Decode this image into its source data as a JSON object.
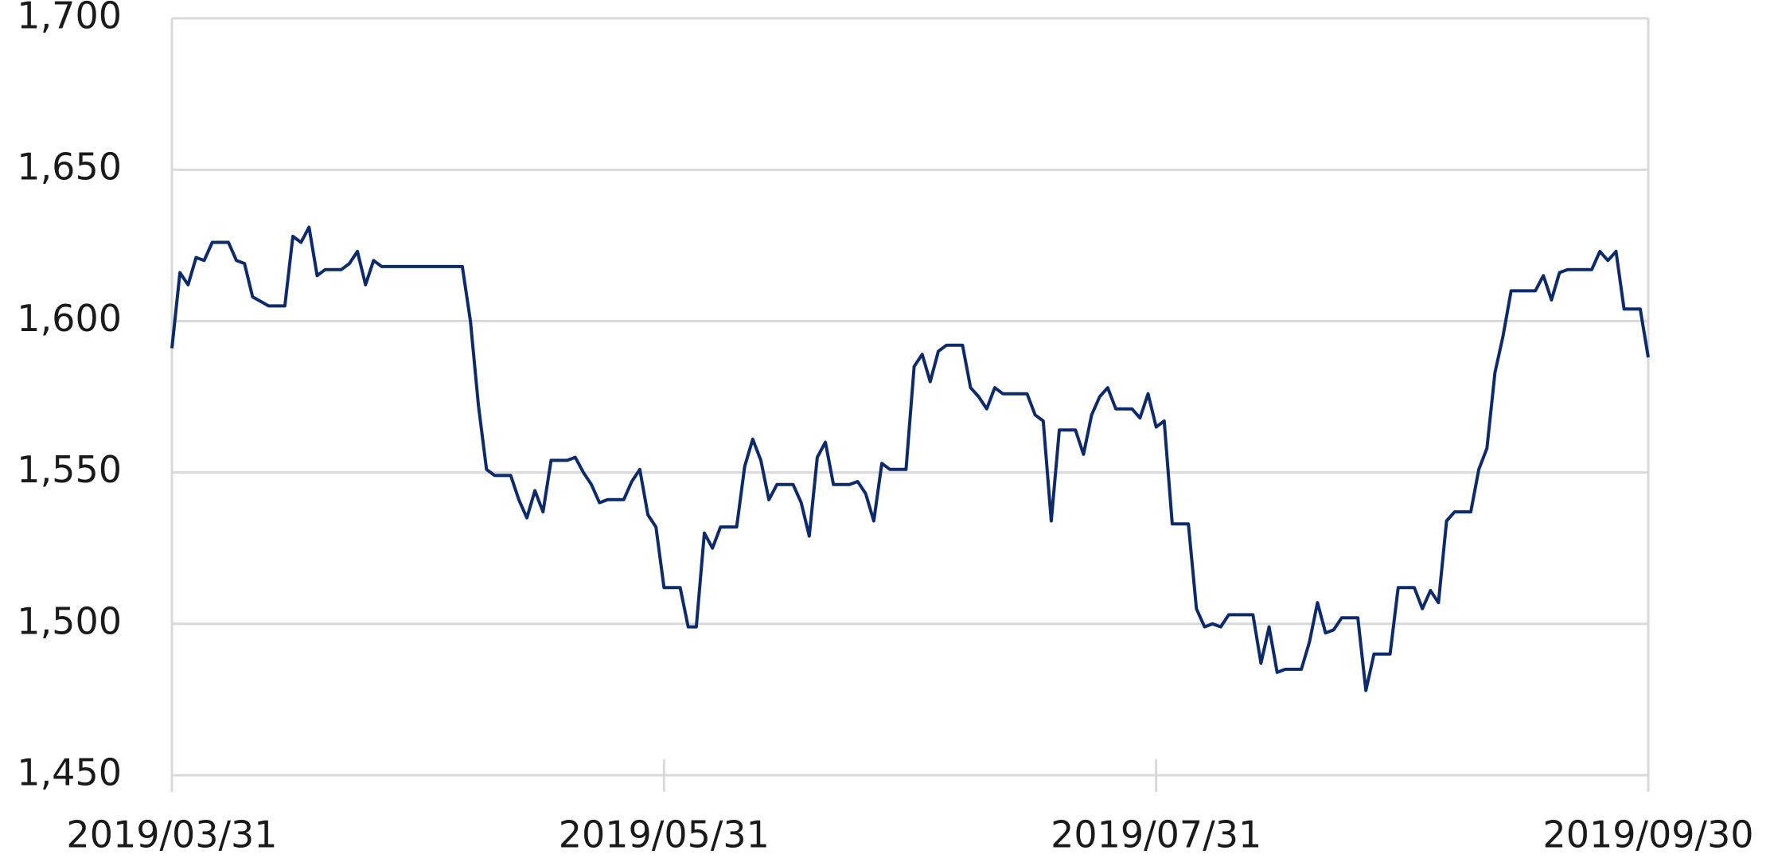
{
  "chart_data": {
    "type": "line",
    "x": [
      "2019/03/31",
      "2019/04/01",
      "2019/04/02",
      "2019/04/03",
      "2019/04/04",
      "2019/04/05",
      "2019/04/07",
      "2019/04/08",
      "2019/04/09",
      "2019/04/10",
      "2019/04/12",
      "2019/04/14",
      "2019/04/15",
      "2019/04/16",
      "2019/04/17",
      "2019/04/18",
      "2019/04/19",
      "2019/04/21",
      "2019/04/22",
      "2019/04/23",
      "2019/04/24",
      "2019/04/25",
      "2019/04/26",
      "2019/05/06",
      "2019/05/07",
      "2019/05/08",
      "2019/05/09",
      "2019/05/10",
      "2019/05/12",
      "2019/05/13",
      "2019/05/14",
      "2019/05/15",
      "2019/05/16",
      "2019/05/17",
      "2019/05/19",
      "2019/05/20",
      "2019/05/21",
      "2019/05/22",
      "2019/05/23",
      "2019/05/24",
      "2019/05/26",
      "2019/05/27",
      "2019/05/28",
      "2019/05/29",
      "2019/05/30",
      "2019/05/31",
      "2019/06/02",
      "2019/06/03",
      "2019/06/04",
      "2019/06/05",
      "2019/06/06",
      "2019/06/07",
      "2019/06/09",
      "2019/06/10",
      "2019/06/11",
      "2019/06/12",
      "2019/06/13",
      "2019/06/14",
      "2019/06/16",
      "2019/06/17",
      "2019/06/18",
      "2019/06/19",
      "2019/06/20",
      "2019/06/21",
      "2019/06/23",
      "2019/06/24",
      "2019/06/25",
      "2019/06/26",
      "2019/06/27",
      "2019/06/28",
      "2019/06/30",
      "2019/07/01",
      "2019/07/02",
      "2019/07/03",
      "2019/07/04",
      "2019/07/05",
      "2019/07/07",
      "2019/07/08",
      "2019/07/09",
      "2019/07/10",
      "2019/07/11",
      "2019/07/12",
      "2019/07/15",
      "2019/07/16",
      "2019/07/17",
      "2019/07/18",
      "2019/07/19",
      "2019/07/21",
      "2019/07/22",
      "2019/07/23",
      "2019/07/24",
      "2019/07/25",
      "2019/07/26",
      "2019/07/28",
      "2019/07/29",
      "2019/07/30",
      "2019/07/31",
      "2019/08/01",
      "2019/08/02",
      "2019/08/04",
      "2019/08/05",
      "2019/08/06",
      "2019/08/07",
      "2019/08/08",
      "2019/08/09",
      "2019/08/12",
      "2019/08/13",
      "2019/08/14",
      "2019/08/15",
      "2019/08/16",
      "2019/08/18",
      "2019/08/19",
      "2019/08/20",
      "2019/08/21",
      "2019/08/22",
      "2019/08/23",
      "2019/08/25",
      "2019/08/26",
      "2019/08/27",
      "2019/08/28",
      "2019/08/29",
      "2019/08/30",
      "2019/09/01",
      "2019/09/02",
      "2019/09/03",
      "2019/09/04",
      "2019/09/05",
      "2019/09/06",
      "2019/09/08",
      "2019/09/09",
      "2019/09/10",
      "2019/09/11",
      "2019/09/12",
      "2019/09/13",
      "2019/09/16",
      "2019/09/17",
      "2019/09/18",
      "2019/09/19",
      "2019/09/20",
      "2019/09/23",
      "2019/09/24",
      "2019/09/25",
      "2019/09/26",
      "2019/09/27",
      "2019/09/29",
      "2019/09/30"
    ],
    "series": [
      {
        "color": "#0d2a6b",
        "values": [
          1591,
          1616,
          1612,
          1621,
          1620,
          1626,
          1626,
          1620,
          1619,
          1608,
          1605,
          1605,
          1628,
          1626,
          1631,
          1615,
          1617,
          1617,
          1619,
          1623,
          1612,
          1620,
          1618,
          1618,
          1600,
          1572,
          1551,
          1549,
          1549,
          1541,
          1535,
          1544,
          1537,
          1554,
          1554,
          1555,
          1550,
          1546,
          1540,
          1541,
          1541,
          1547,
          1551,
          1536,
          1532,
          1512,
          1512,
          1499,
          1499,
          1530,
          1525,
          1532,
          1532,
          1552,
          1561,
          1554,
          1541,
          1546,
          1546,
          1540,
          1529,
          1555,
          1560,
          1546,
          1546,
          1547,
          1543,
          1534,
          1553,
          1551,
          1551,
          1585,
          1589,
          1580,
          1590,
          1592,
          1592,
          1578,
          1575,
          1571,
          1578,
          1576,
          1576,
          1569,
          1567,
          1534,
          1564,
          1564,
          1556,
          1569,
          1575,
          1578,
          1571,
          1571,
          1568,
          1576,
          1565,
          1567,
          1533,
          1533,
          1505,
          1499,
          1500,
          1499,
          1503,
          1503,
          1487,
          1499,
          1484,
          1485,
          1485,
          1494,
          1507,
          1497,
          1498,
          1502,
          1502,
          1478,
          1490,
          1490,
          1490,
          1512,
          1512,
          1505,
          1511,
          1507,
          1534,
          1537,
          1537,
          1551,
          1558,
          1583,
          1595,
          1610,
          1610,
          1615,
          1607,
          1616,
          1617,
          1617,
          1623,
          1620,
          1623,
          1604,
          1604,
          1588
        ]
      }
    ],
    "xlim": [
      "2019/03/31",
      "2019/09/30"
    ],
    "xticks": [
      "2019/03/31",
      "2019/05/31",
      "2019/07/31",
      "2019/09/30"
    ],
    "ylim": [
      1450,
      1700
    ],
    "yticks": [
      {
        "value": 1450,
        "label": "1,450"
      },
      {
        "value": 1500,
        "label": "1,500"
      },
      {
        "value": 1550,
        "label": "1,550"
      },
      {
        "value": 1600,
        "label": "1,600"
      },
      {
        "value": 1650,
        "label": "1,650"
      },
      {
        "value": 1700,
        "label": "1,700"
      }
    ],
    "grid": true
  }
}
